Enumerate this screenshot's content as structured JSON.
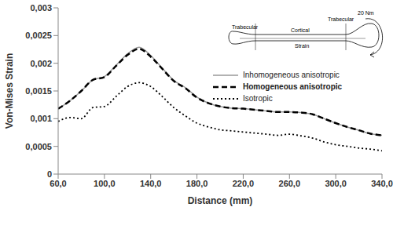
{
  "chart_data": {
    "type": "line",
    "x_label": "Distance (mm)",
    "y_label": "Von-Mises Strain",
    "x": [
      60,
      70,
      80,
      90,
      100,
      110,
      120,
      130,
      140,
      150,
      160,
      170,
      180,
      190,
      200,
      210,
      220,
      230,
      240,
      250,
      260,
      270,
      280,
      290,
      300,
      310,
      320,
      330,
      340
    ],
    "series": [
      {
        "name": "Inhomogeneous anisotropic",
        "color": "#999999",
        "line_style": "solid",
        "values": [
          0.00118,
          0.00132,
          0.0015,
          0.0017,
          0.00176,
          0.00196,
          0.00217,
          0.00229,
          0.00214,
          0.00191,
          0.00169,
          0.00156,
          0.00139,
          0.00128,
          0.00122,
          0.00119,
          0.00118,
          0.00116,
          0.00114,
          0.00112,
          0.00112,
          0.00111,
          0.00108,
          0.001,
          0.00092,
          0.00085,
          0.00079,
          0.00073,
          0.0007
        ]
      },
      {
        "name": "Homogeneous anisotropic",
        "color": "#000000",
        "line_style": "dashed",
        "values": [
          0.00118,
          0.00132,
          0.0015,
          0.0017,
          0.00175,
          0.00195,
          0.00215,
          0.00226,
          0.00212,
          0.0019,
          0.00168,
          0.00155,
          0.00138,
          0.00128,
          0.00122,
          0.00119,
          0.00118,
          0.00116,
          0.00114,
          0.00112,
          0.00112,
          0.00111,
          0.00108,
          0.001,
          0.00092,
          0.00085,
          0.00079,
          0.00073,
          0.0007
        ]
      },
      {
        "name": "Isotropic",
        "color": "#000000",
        "line_style": "dotted",
        "values": [
          0.00095,
          0.00102,
          0.001,
          0.0012,
          0.00122,
          0.0014,
          0.00158,
          0.00165,
          0.00158,
          0.0014,
          0.0012,
          0.00105,
          0.00092,
          0.00085,
          0.0008,
          0.00078,
          0.00076,
          0.00074,
          0.00072,
          0.0007,
          0.00072,
          0.00069,
          0.00065,
          0.00058,
          0.00053,
          0.0005,
          0.00047,
          0.00045,
          0.00042
        ]
      }
    ],
    "xlim": [
      60,
      340
    ],
    "xticks": [
      {
        "value": 60,
        "label": "60,0"
      },
      {
        "value": 100,
        "label": "100,0"
      },
      {
        "value": 140,
        "label": "140,0"
      },
      {
        "value": 180,
        "label": "180,0"
      },
      {
        "value": 220,
        "label": "220,0"
      },
      {
        "value": 260,
        "label": "260,0"
      },
      {
        "value": 300,
        "label": "300,0"
      },
      {
        "value": 340,
        "label": "340,0"
      }
    ],
    "ylim": [
      0,
      0.003
    ],
    "yticks": [
      0,
      {
        "value": 0.0005,
        "label": "0,0005"
      },
      {
        "value": 0.001,
        "label": "0,001"
      },
      {
        "value": 0.0015,
        "label": "0,0015"
      },
      {
        "value": 0.002,
        "label": "0,002"
      },
      {
        "value": 0.0025,
        "label": "0,0025"
      },
      {
        "value": 0.003,
        "label": "0,003"
      }
    ],
    "grid": false,
    "legend": "upper right",
    "annotations": [
      "Trabecular",
      "Cortical",
      "Trabecular",
      "Strain",
      "20 Nm"
    ]
  }
}
